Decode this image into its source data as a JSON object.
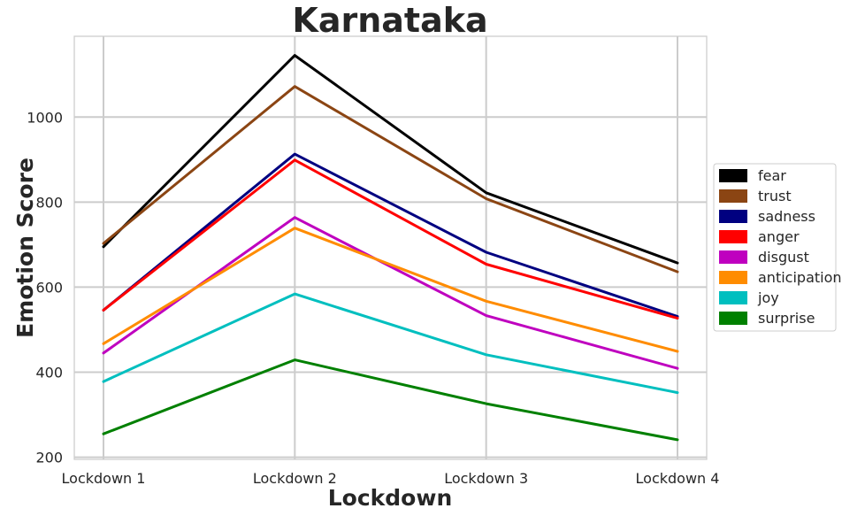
{
  "chart_data": {
    "type": "line",
    "title": "Karnataka",
    "xlabel": "Lockdown",
    "ylabel": "Emotion Score",
    "categories": [
      "Lockdown 1",
      "Lockdown 2",
      "Lockdown 3",
      "Lockdown 4"
    ],
    "ylim": [
      195,
      1190
    ],
    "yticks": [
      200,
      400,
      600,
      800,
      1000
    ],
    "grid": true,
    "legend_position": "center-right",
    "series": [
      {
        "name": "fear",
        "color": "#000000",
        "values": [
          695,
          1145,
          822,
          657
        ]
      },
      {
        "name": "trust",
        "color": "#8B4513",
        "values": [
          703,
          1072,
          808,
          636
        ]
      },
      {
        "name": "sadness",
        "color": "#000080",
        "values": [
          546,
          913,
          682,
          531
        ]
      },
      {
        "name": "anger",
        "color": "#FF0000",
        "values": [
          546,
          899,
          654,
          527
        ]
      },
      {
        "name": "disgust",
        "color": "#BF00BF",
        "values": [
          445,
          764,
          533,
          409
        ]
      },
      {
        "name": "anticipation",
        "color": "#FF8C00",
        "values": [
          467,
          739,
          567,
          449
        ]
      },
      {
        "name": "joy",
        "color": "#00BFBF",
        "values": [
          378,
          584,
          441,
          352
        ]
      },
      {
        "name": "surprise",
        "color": "#008000",
        "values": [
          255,
          429,
          326,
          241
        ]
      }
    ]
  }
}
